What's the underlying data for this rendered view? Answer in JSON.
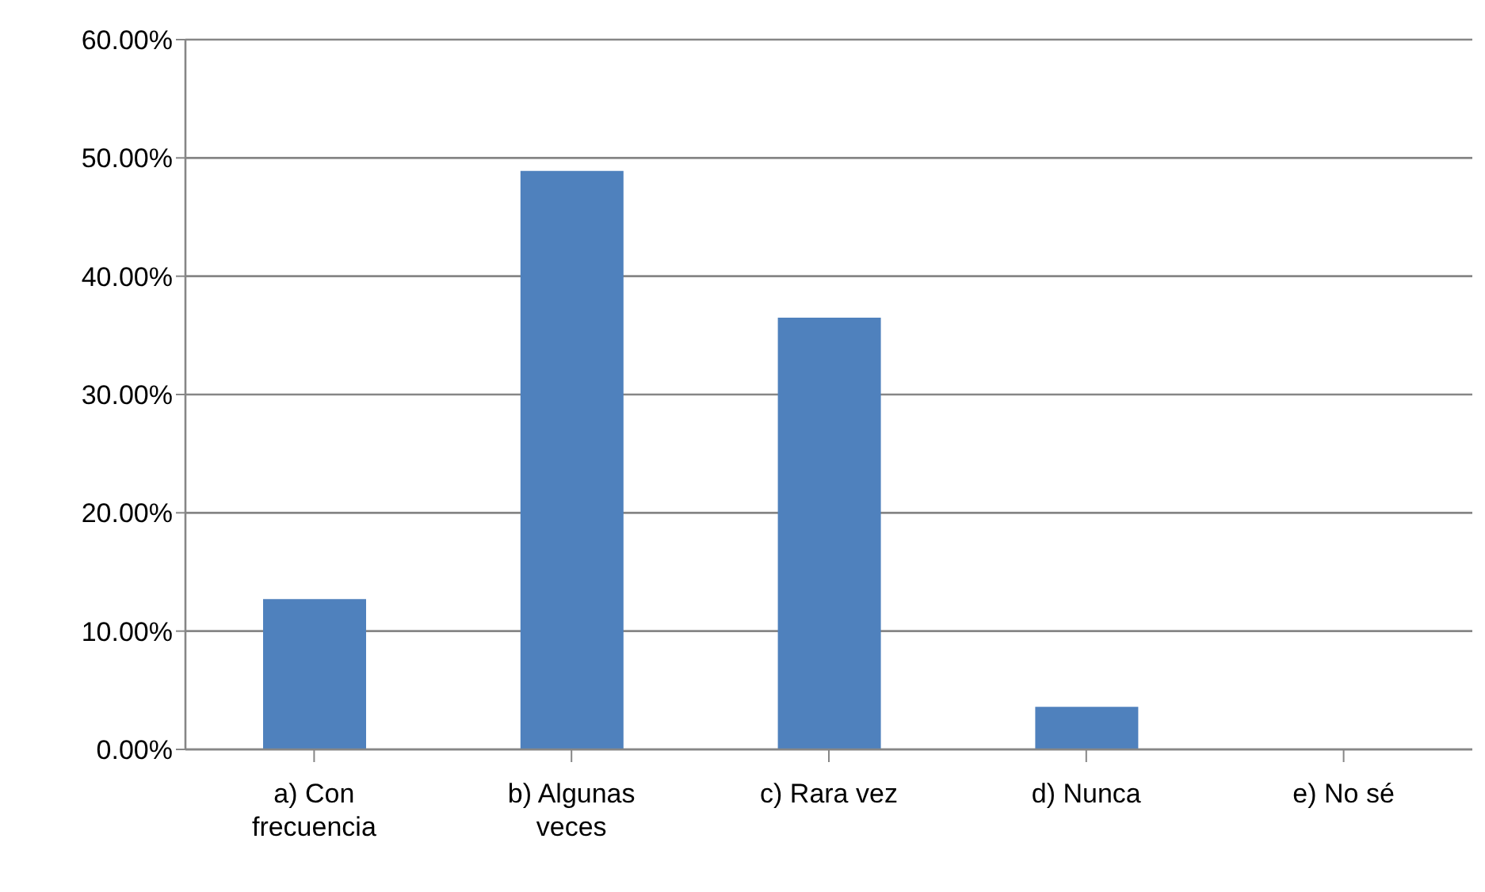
{
  "chart_data": {
    "type": "bar",
    "categories": [
      "a) Con frecuencia",
      "b) Algunas veces",
      "c) Rara vez",
      "d) Nunca",
      "e) No sé"
    ],
    "values": [
      12.7,
      48.9,
      36.5,
      3.6,
      0
    ],
    "color": "#4f81bd",
    "ylim": [
      0,
      60
    ],
    "yticks": [
      {
        "value": 0,
        "label": "0.00%"
      },
      {
        "value": 10,
        "label": "10.00%"
      },
      {
        "value": 20,
        "label": "20.00%"
      },
      {
        "value": 30,
        "label": "30.00%"
      },
      {
        "value": 40,
        "label": "40.00%"
      },
      {
        "value": 50,
        "label": "50.00%"
      },
      {
        "value": 60,
        "label": "60.00%"
      }
    ],
    "grid": "y",
    "legend": false
  }
}
